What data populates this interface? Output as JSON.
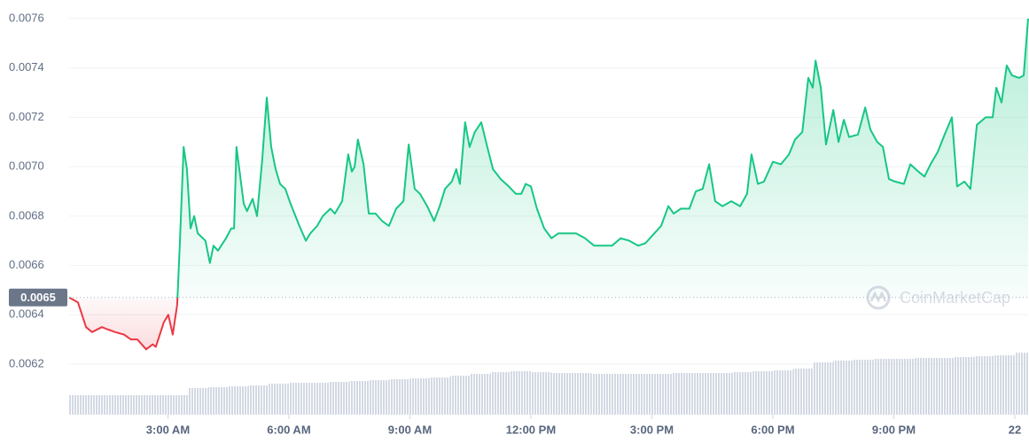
{
  "chart_data": {
    "type": "line",
    "x": [
      0.55,
      0.77,
      0.97,
      1.12,
      1.36,
      1.52,
      1.69,
      1.91,
      2.08,
      2.24,
      2.46,
      2.62,
      2.7,
      2.9,
      3.01,
      3.12,
      3.23,
      3.29,
      3.39,
      3.47,
      3.56,
      3.65,
      3.74,
      3.93,
      4.04,
      4.13,
      4.24,
      4.44,
      4.57,
      4.64,
      4.7,
      4.88,
      4.96,
      5.1,
      5.21,
      5.34,
      5.45,
      5.56,
      5.67,
      5.78,
      5.91,
      6.04,
      6.26,
      6.42,
      6.53,
      6.7,
      6.84,
      7.03,
      7.14,
      7.32,
      7.47,
      7.56,
      7.63,
      7.71,
      7.85,
      7.98,
      8.15,
      8.31,
      8.48,
      8.66,
      8.84,
      8.97,
      9.12,
      9.25,
      9.43,
      9.6,
      9.74,
      9.87,
      10.04,
      10.15,
      10.24,
      10.37,
      10.48,
      10.61,
      10.77,
      10.92,
      11.06,
      11.25,
      11.45,
      11.63,
      11.76,
      11.87,
      12.0,
      12.15,
      12.33,
      12.51,
      12.68,
      12.91,
      13.12,
      13.34,
      13.57,
      13.79,
      14.01,
      14.23,
      14.44,
      14.66,
      14.84,
      15.06,
      15.23,
      15.41,
      15.54,
      15.72,
      15.93,
      16.09,
      16.26,
      16.42,
      16.57,
      16.75,
      16.97,
      17.19,
      17.36,
      17.47,
      17.63,
      17.78,
      18.0,
      18.2,
      18.4,
      18.55,
      18.73,
      18.88,
      18.99,
      19.06,
      19.19,
      19.32,
      19.5,
      19.63,
      19.76,
      19.89,
      20.11,
      20.29,
      20.42,
      20.59,
      20.73,
      20.88,
      21.03,
      21.25,
      21.41,
      21.61,
      21.76,
      21.91,
      22.09,
      22.26,
      22.44,
      22.57,
      22.75,
      22.9,
      23.06,
      23.28,
      23.45,
      23.54,
      23.67,
      23.8,
      23.93,
      24.11,
      24.22,
      24.33
    ],
    "values": [
      0.00647,
      0.00645,
      0.00635,
      0.00633,
      0.00635,
      0.00634,
      0.00633,
      0.00632,
      0.0063,
      0.0063,
      0.00626,
      0.00628,
      0.00627,
      0.00637,
      0.0064,
      0.00632,
      0.00644,
      0.00667,
      0.00708,
      0.00699,
      0.00675,
      0.0068,
      0.00673,
      0.0067,
      0.00661,
      0.00668,
      0.00666,
      0.00671,
      0.00675,
      0.00675,
      0.00708,
      0.00685,
      0.00682,
      0.00687,
      0.0068,
      0.00703,
      0.00728,
      0.00708,
      0.00699,
      0.00693,
      0.00691,
      0.00685,
      0.00676,
      0.0067,
      0.00673,
      0.00676,
      0.0068,
      0.00683,
      0.00681,
      0.00686,
      0.00705,
      0.00698,
      0.007,
      0.00711,
      0.00701,
      0.00681,
      0.00681,
      0.00678,
      0.00676,
      0.00683,
      0.00686,
      0.00709,
      0.00691,
      0.00689,
      0.00684,
      0.00678,
      0.00684,
      0.00691,
      0.00694,
      0.00699,
      0.00693,
      0.00718,
      0.00708,
      0.00714,
      0.00718,
      0.00708,
      0.00699,
      0.00695,
      0.00692,
      0.00689,
      0.00689,
      0.00693,
      0.00692,
      0.00683,
      0.00675,
      0.00671,
      0.00673,
      0.00673,
      0.00673,
      0.00671,
      0.00668,
      0.00668,
      0.00668,
      0.00671,
      0.0067,
      0.00668,
      0.00669,
      0.00673,
      0.00676,
      0.00684,
      0.00681,
      0.00683,
      0.00683,
      0.0069,
      0.00691,
      0.00701,
      0.00686,
      0.00684,
      0.00686,
      0.00684,
      0.00689,
      0.00705,
      0.00693,
      0.00694,
      0.00702,
      0.00701,
      0.00705,
      0.00711,
      0.00714,
      0.00736,
      0.00732,
      0.00743,
      0.00732,
      0.00709,
      0.00723,
      0.0071,
      0.00719,
      0.00712,
      0.00713,
      0.00724,
      0.00715,
      0.0071,
      0.00708,
      0.00695,
      0.00694,
      0.00693,
      0.00701,
      0.00698,
      0.00696,
      0.00701,
      0.00706,
      0.00713,
      0.0072,
      0.00692,
      0.00694,
      0.00691,
      0.00717,
      0.0072,
      0.0072,
      0.00732,
      0.00726,
      0.00741,
      0.00737,
      0.00736,
      0.00737,
      0.0076
    ],
    "color_up": "#16c784",
    "color_down": "#ea3943",
    "baseline": {
      "value": 0.00647,
      "label": "0.0065"
    },
    "watermark": "CoinMarketCap",
    "xlim": [
      0.55,
      24.33
    ],
    "xticks": [
      {
        "value": 3,
        "label": "3:00 AM"
      },
      {
        "value": 6,
        "label": "6:00 AM"
      },
      {
        "value": 9,
        "label": "9:00 AM"
      },
      {
        "value": 12,
        "label": "12:00 PM"
      },
      {
        "value": 15,
        "label": "3:00 PM"
      },
      {
        "value": 18,
        "label": "6:00 PM"
      },
      {
        "value": 21,
        "label": "9:00 PM"
      },
      {
        "value": 24,
        "label": "22"
      }
    ],
    "ylim": [
      0.0062,
      0.0076
    ],
    "yticks": [
      0.0062,
      0.0064,
      0.0066,
      0.0068,
      {
        "value": 0.007,
        "label": "0.0070"
      },
      0.0072,
      0.0074,
      0.0076
    ],
    "grid": true,
    "volume": {
      "x": [
        0.75,
        1.25,
        1.75,
        2.25,
        2.75,
        3.25,
        3.75,
        4.25,
        4.75,
        5.25,
        5.75,
        6.25,
        6.75,
        7.25,
        7.75,
        8.25,
        8.75,
        9.25,
        9.75,
        10.25,
        10.75,
        11.25,
        11.75,
        12.25,
        12.75,
        13.25,
        13.75,
        14.25,
        14.75,
        15.25,
        15.75,
        16.25,
        16.75,
        17.25,
        17.75,
        18.25,
        18.75,
        19.25,
        19.75,
        20.25,
        20.75,
        21.25,
        21.75,
        22.25,
        22.75,
        23.25,
        23.75,
        24.25
      ],
      "values": [
        22,
        22,
        22,
        22,
        22,
        22,
        30,
        31,
        32,
        33,
        35,
        36,
        36,
        37,
        38,
        39,
        40,
        41,
        42,
        44,
        46,
        48,
        49,
        48,
        47,
        47,
        46,
        46,
        46,
        46,
        47,
        47,
        47,
        48,
        49,
        50,
        52,
        59,
        61,
        62,
        63,
        63,
        64,
        64,
        65,
        66,
        67,
        70
      ],
      "lim": [
        0,
        100
      ],
      "color": "#cfd6e4"
    }
  }
}
